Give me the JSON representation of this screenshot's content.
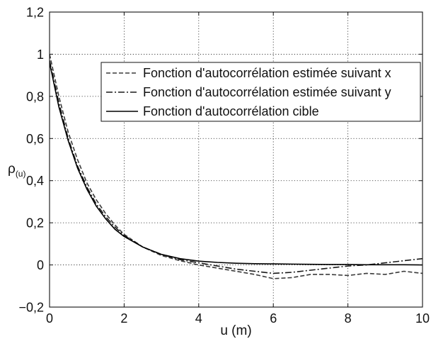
{
  "chart_data": {
    "type": "line",
    "title": "",
    "xlabel": "u (m)",
    "ylabel": {
      "symbol": "ρ",
      "subscript": "(u)"
    },
    "xlim": [
      0,
      10
    ],
    "ylim": [
      -0.2,
      1.2
    ],
    "grid": true,
    "legend_position": "top-right",
    "xticks": [
      {
        "value": 0,
        "label": "0"
      },
      {
        "value": 2,
        "label": "2"
      },
      {
        "value": 4,
        "label": "4"
      },
      {
        "value": 6,
        "label": "6"
      },
      {
        "value": 8,
        "label": "8"
      },
      {
        "value": 10,
        "label": "10"
      }
    ],
    "yticks": [
      {
        "value": -0.2,
        "label": "−0,2"
      },
      {
        "value": 0,
        "label": "0"
      },
      {
        "value": 0.2,
        "label": "0,2"
      },
      {
        "value": 0.4,
        "label": "0,4"
      },
      {
        "value": 0.6,
        "label": "0,6"
      },
      {
        "value": 0.8,
        "label": "0,8"
      },
      {
        "value": 1.0,
        "label": "1"
      },
      {
        "value": 1.2,
        "label": "1,2"
      }
    ],
    "x": [
      0,
      0.25,
      0.5,
      0.75,
      1,
      1.25,
      1.5,
      1.75,
      2,
      2.5,
      3,
      3.5,
      4,
      4.5,
      5,
      5.5,
      6,
      6.5,
      7,
      7.5,
      8,
      8.5,
      9,
      9.5,
      10
    ],
    "series": [
      {
        "name": "Fonction d'autocorrélation estimée suivant x",
        "color": "#3a3a3a",
        "values": [
          1.0,
          0.8,
          0.63,
          0.5,
          0.39,
          0.31,
          0.245,
          0.19,
          0.145,
          0.085,
          0.045,
          0.02,
          0.0,
          -0.015,
          -0.03,
          -0.045,
          -0.065,
          -0.06,
          -0.045,
          -0.045,
          -0.05,
          -0.04,
          -0.045,
          -0.03,
          -0.04
        ]
      },
      {
        "name": "Fonction d'autocorrélation estimée suivant y",
        "color": "#1a1a1a",
        "values": [
          0.97,
          0.77,
          0.6,
          0.47,
          0.37,
          0.29,
          0.23,
          0.18,
          0.14,
          0.085,
          0.05,
          0.025,
          0.01,
          -0.005,
          -0.02,
          -0.03,
          -0.04,
          -0.035,
          -0.025,
          -0.015,
          -0.005,
          0.0,
          0.01,
          0.02,
          0.03
        ]
      },
      {
        "name": "Fonction d'autocorrélation cible",
        "color": "#000000",
        "values": [
          0.96,
          0.75,
          0.59,
          0.46,
          0.36,
          0.28,
          0.22,
          0.17,
          0.135,
          0.085,
          0.05,
          0.03,
          0.018,
          0.012,
          0.008,
          0.006,
          0.005,
          0.004,
          0.003,
          0.002,
          0.002,
          0.001,
          0.001,
          0.001,
          0.0
        ]
      }
    ]
  }
}
